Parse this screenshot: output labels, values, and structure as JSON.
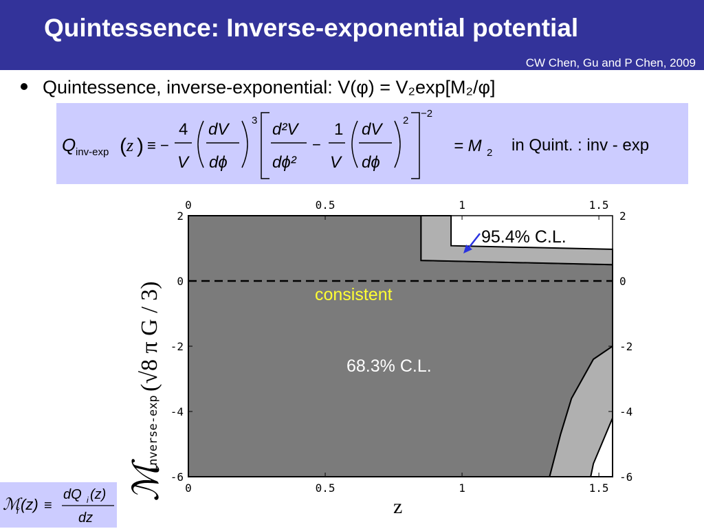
{
  "slide": {
    "title": "Quintessence: Inverse-exponential potential",
    "citation": "CW Chen, Gu and P Chen, 2009",
    "bullet": "Quintessence, inverse-exponential:  V(φ) = V₂exp[M₂/φ]"
  },
  "formula": {
    "Q": "Q",
    "sub": "inv-exp",
    "z": "z",
    "equiv": "≡ −",
    "four": "4",
    "one": "1",
    "V": "V",
    "dV": "dV",
    "dphi": "dϕ",
    "d2V": "d²V",
    "dphi2": "dϕ²",
    "minus": "−",
    "exp3": "3",
    "exp2": "2",
    "expm2": "−2",
    "result": "= M",
    "result_sub": "2",
    "note": "in  Quint. : inv - exp"
  },
  "definition": {
    "lhs": "ℳ",
    "lhs_sub": "i",
    "z": "(z)",
    "equiv": "≡",
    "num": "dQ",
    "num_sub": "i",
    "num_z": "(z)",
    "den": "dz"
  },
  "chart_data": {
    "type": "area",
    "xlabel": "z",
    "ylabel": "ℳ",
    "ylabel_sub": "inverse-exp",
    "ylabel_factor": "(√8 π G / 3)",
    "xlim": [
      0,
      1.55
    ],
    "ylim": [
      -6,
      2
    ],
    "x_ticks": [
      "0",
      "0.5",
      "1",
      "1.5"
    ],
    "y_ticks": [
      "2",
      "0",
      "-2",
      "-4",
      "-6"
    ],
    "reference_line": {
      "y": 0,
      "style": "dashed",
      "label": "consistent"
    },
    "regions": [
      {
        "label": "68.3% C.L.",
        "color": "#7b7b7b"
      },
      {
        "label": "95.4% C.L.",
        "color": "#b0b0b0"
      }
    ],
    "colors": {
      "consistent": "#ffff33",
      "arrow": "#2a33e0",
      "background": "#ffffff"
    }
  }
}
